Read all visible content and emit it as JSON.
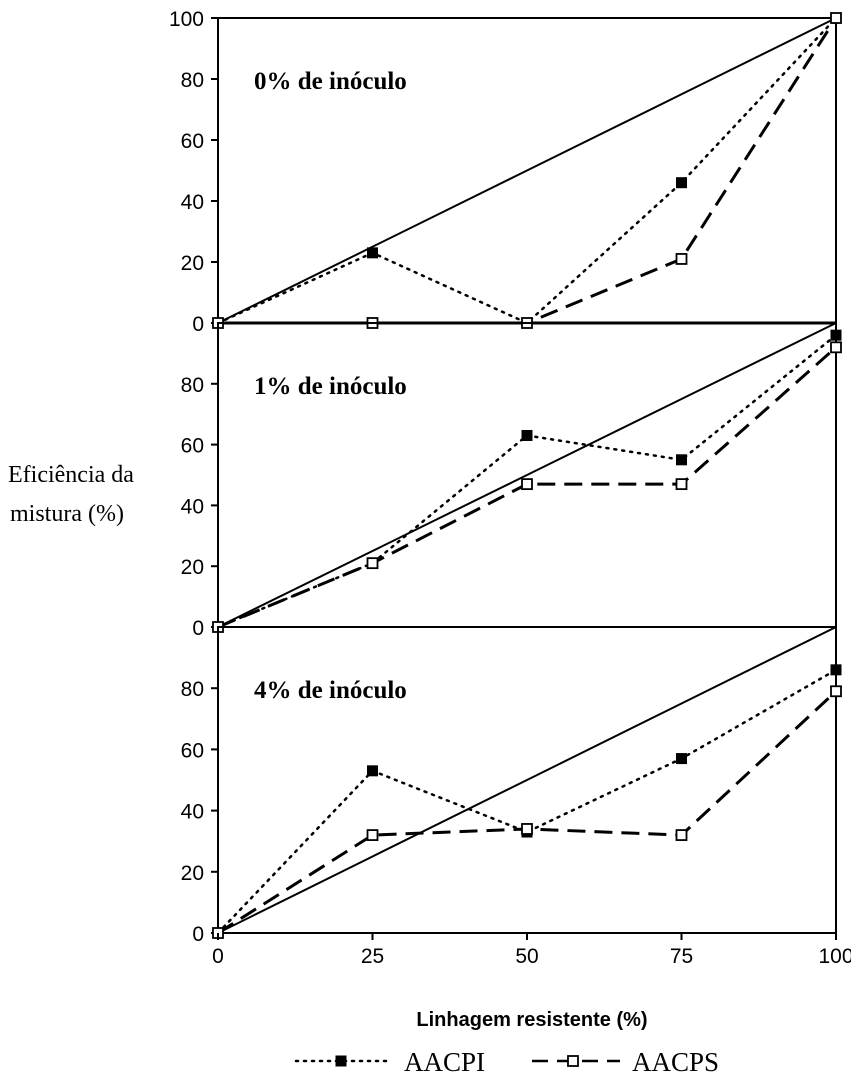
{
  "chart_data": {
    "type": "line",
    "ylabel_lines": [
      "Eficiência da",
      "mistura (%)"
    ],
    "xlabel": "Linhagem resistente (%)",
    "x": [
      0,
      25,
      50,
      75,
      100
    ],
    "xlim": [
      0,
      100
    ],
    "ylim": [
      0,
      100
    ],
    "x_ticks": [
      "0",
      "25",
      "50",
      "75",
      "100"
    ],
    "legend_placement": "bottom",
    "colors": {
      "line": "#000000",
      "filled_marker": "#000000",
      "open_marker": "#ffffff"
    },
    "panels": [
      {
        "title": "0% de inóculo",
        "y_ticks": [
          "0",
          "20",
          "40",
          "60",
          "80",
          "100"
        ],
        "reference": [
          0,
          25,
          50,
          75,
          100
        ],
        "series": [
          {
            "name": "AACPI",
            "style": "dotted",
            "marker": "filled-square",
            "values": [
              0,
              23,
              0,
              46,
              100
            ]
          },
          {
            "name": "AACPS",
            "style": "dashed",
            "marker": "open-square",
            "values": [
              0,
              0,
              0,
              21,
              100
            ]
          }
        ]
      },
      {
        "title": "1% de inóculo",
        "y_ticks": [
          "0",
          "20",
          "40",
          "60",
          "80"
        ],
        "reference": [
          0,
          25,
          50,
          75,
          100
        ],
        "series": [
          {
            "name": "AACPI",
            "style": "dotted",
            "marker": "filled-square",
            "values": [
              0,
              21,
              63,
              55,
              96
            ]
          },
          {
            "name": "AACPS",
            "style": "dashed",
            "marker": "open-square",
            "values": [
              0,
              21,
              47,
              47,
              92
            ]
          }
        ]
      },
      {
        "title": "4% de inóculo",
        "y_ticks": [
          "0",
          "20",
          "40",
          "60",
          "80"
        ],
        "reference": [
          0,
          25,
          50,
          75,
          100
        ],
        "series": [
          {
            "name": "AACPI",
            "style": "dotted",
            "marker": "filled-square",
            "values": [
              0,
              53,
              33,
              57,
              86
            ]
          },
          {
            "name": "AACPS",
            "style": "dashed",
            "marker": "open-square",
            "values": [
              0,
              32,
              34,
              32,
              79
            ]
          }
        ]
      }
    ]
  },
  "legend": [
    {
      "name": "AACPI",
      "style": "dotted",
      "marker": "filled-square"
    },
    {
      "name": "AACPS",
      "style": "dashed",
      "marker": "open-square"
    }
  ]
}
